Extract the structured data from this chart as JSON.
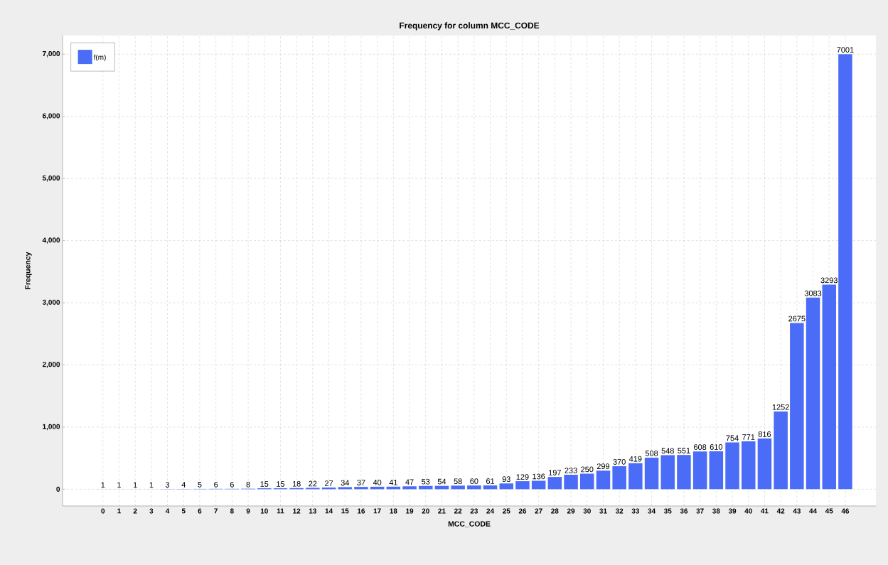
{
  "chart_data": {
    "type": "bar",
    "title": "Frequency for column MCC_CODE",
    "xlabel": "MCC_CODE",
    "ylabel": "Frequency",
    "categories": [
      "0",
      "1",
      "2",
      "3",
      "4",
      "5",
      "6",
      "7",
      "8",
      "9",
      "10",
      "11",
      "12",
      "13",
      "14",
      "15",
      "16",
      "17",
      "18",
      "19",
      "20",
      "21",
      "22",
      "23",
      "24",
      "25",
      "26",
      "27",
      "28",
      "29",
      "30",
      "31",
      "32",
      "33",
      "34",
      "35",
      "36",
      "37",
      "38",
      "39",
      "40",
      "41",
      "42",
      "43",
      "44",
      "45",
      "46"
    ],
    "series": [
      {
        "name": "f(m)",
        "color": "#4a6cf7",
        "values": [
          1,
          1,
          1,
          1,
          3,
          4,
          5,
          6,
          6,
          8,
          15,
          15,
          18,
          22,
          27,
          34,
          37,
          40,
          41,
          47,
          53,
          54,
          58,
          60,
          61,
          93,
          129,
          136,
          197,
          233,
          250,
          299,
          370,
          419,
          508,
          548,
          551,
          608,
          610,
          754,
          771,
          816,
          1252,
          2675,
          3083,
          3293,
          7001
        ]
      }
    ],
    "ylim": [
      -270,
      7300
    ],
    "yticks": [
      0,
      {
        "value": 1000,
        "label": "1,000"
      },
      {
        "value": 2000,
        "label": "2,000"
      },
      {
        "value": 3000,
        "label": "3,000"
      },
      {
        "value": 4000,
        "label": "4,000"
      },
      {
        "value": 5000,
        "label": "5,000"
      },
      {
        "value": 6000,
        "label": "6,000"
      },
      {
        "value": 7000,
        "label": "7,000"
      }
    ],
    "grid": true,
    "legend": "top left",
    "data_labels": true
  }
}
